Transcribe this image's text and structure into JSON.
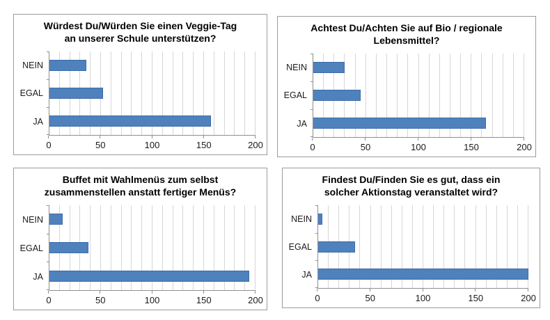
{
  "figure": {
    "background": "#ffffff",
    "panel_border_color": "#9b9b9b"
  },
  "colors": {
    "bar_fill": "#4f81bd",
    "bar_border": "#3c6ca8",
    "gridline": "#d6d6d6",
    "axis_line": "#8e8e8e",
    "text": "#000000",
    "tick_text": "#1a1a1a"
  },
  "chart_data": [
    {
      "type": "bar",
      "orientation": "horizontal",
      "title": "Würdest Du/Würden Sie einen Veggie-Tag an unserer Schule unterstützen?",
      "categories": [
        "NEIN",
        "EGAL",
        "JA"
      ],
      "values": [
        36,
        52,
        157
      ],
      "xlim": [
        0,
        200
      ],
      "xticks": [
        0,
        50,
        100,
        150,
        200
      ],
      "minor_grid_step": 10,
      "grid": true,
      "legend": false
    },
    {
      "type": "bar",
      "orientation": "horizontal",
      "title": "Achtest Du/Achten Sie auf Bio / regionale Lebensmittel?",
      "categories": [
        "NEIN",
        "EGAL",
        "JA"
      ],
      "values": [
        30,
        45,
        164
      ],
      "xlim": [
        0,
        200
      ],
      "xticks": [
        0,
        50,
        100,
        150,
        200
      ],
      "minor_grid_step": 10,
      "grid": true,
      "legend": false
    },
    {
      "type": "bar",
      "orientation": "horizontal",
      "title": "Buffet mit Wahlmenüs zum selbst zusammenstellen anstatt fertiger Menüs?",
      "categories": [
        "NEIN",
        "EGAL",
        "JA"
      ],
      "values": [
        13,
        38,
        194
      ],
      "xlim": [
        0,
        200
      ],
      "xticks": [
        0,
        50,
        100,
        150,
        200
      ],
      "minor_grid_step": 10,
      "grid": true,
      "legend": false
    },
    {
      "type": "bar",
      "orientation": "horizontal",
      "title": "Findest Du/Finden Sie es gut, dass ein solcher Aktionstag veranstaltet wird?",
      "categories": [
        "NEIN",
        "EGAL",
        "JA"
      ],
      "values": [
        4,
        35,
        200
      ],
      "xlim": [
        0,
        200
      ],
      "xticks": [
        0,
        50,
        100,
        150,
        200
      ],
      "minor_grid_step": 10,
      "grid": true,
      "legend": false
    }
  ]
}
